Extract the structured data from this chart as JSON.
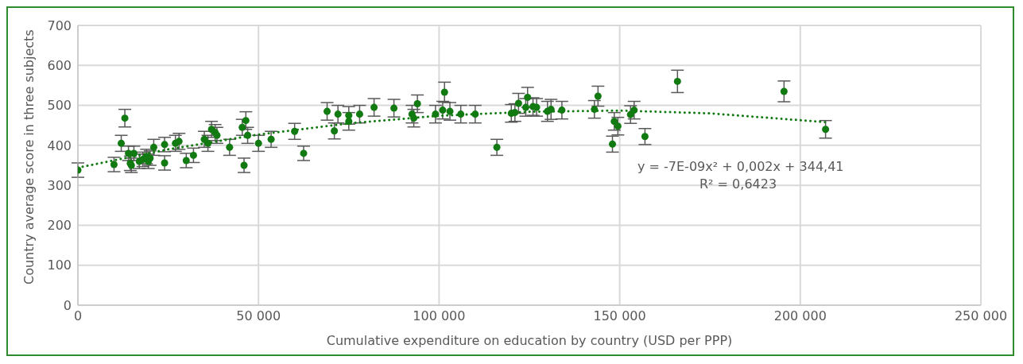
{
  "chart_data": {
    "type": "scatter",
    "xlabel": "Cumulative expenditure on education by country (USD per PPP)",
    "ylabel": "Country average score in three subjects",
    "x": [
      0,
      10000,
      12000,
      13000,
      14000,
      14500,
      14800,
      15500,
      17000,
      18000,
      19000,
      19500,
      20000,
      21000,
      24000,
      24000,
      27000,
      28000,
      30000,
      32000,
      35000,
      36000,
      37000,
      38000,
      38500,
      42000,
      45500,
      46000,
      46500,
      47000,
      50000,
      53500,
      60000,
      62500,
      69000,
      71000,
      72000,
      75000,
      75000,
      78000,
      82000,
      87500,
      92500,
      93000,
      94000,
      99000,
      101000,
      101500,
      103000,
      106000,
      110000,
      116000,
      120000,
      121000,
      122000,
      124000,
      124500,
      126000,
      127000,
      130000,
      131000,
      134000,
      143000,
      144000,
      148000,
      148500,
      149500,
      153000,
      154000,
      157000,
      166000,
      195500,
      207000
    ],
    "series": [
      {
        "color": "#117a11",
        "marker": "circle",
        "values": [
          338,
          352,
          405,
          468,
          380,
          355,
          350,
          380,
          360,
          365,
          372,
          360,
          368,
          395,
          402,
          356,
          405,
          410,
          362,
          375,
          415,
          405,
          440,
          432,
          425,
          395,
          445,
          350,
          462,
          425,
          405,
          415,
          435,
          380,
          485,
          436,
          478,
          475,
          460,
          478,
          495,
          493,
          478,
          468,
          504,
          478,
          488,
          533,
          485,
          478,
          478,
          395,
          480,
          482,
          505,
          495,
          520,
          497,
          495,
          485,
          490,
          488,
          490,
          523,
          403,
          460,
          448,
          477,
          488,
          422,
          560,
          535,
          440
        ],
        "errors": [
          18,
          18,
          20,
          22,
          18,
          18,
          18,
          18,
          18,
          18,
          18,
          18,
          18,
          20,
          18,
          18,
          20,
          20,
          18,
          18,
          20,
          20,
          20,
          20,
          20,
          20,
          20,
          18,
          22,
          20,
          20,
          20,
          20,
          18,
          22,
          20,
          22,
          22,
          22,
          22,
          22,
          22,
          22,
          22,
          22,
          22,
          22,
          25,
          22,
          22,
          22,
          20,
          22,
          22,
          25,
          22,
          25,
          22,
          22,
          25,
          25,
          22,
          22,
          25,
          20,
          22,
          22,
          22,
          22,
          20,
          28,
          26,
          22
        ]
      },
      {
        "type": "line",
        "color": "#117a11",
        "line_style": "dotted",
        "x": [
          0,
          25000,
          50000,
          75000,
          100000,
          125000,
          150000,
          175000,
          207000
        ],
        "values": [
          344,
          390,
          427,
          455,
          474,
          484,
          487,
          480,
          458
        ]
      }
    ],
    "xlim": [
      0,
      250000
    ],
    "xticks": [
      {
        "value": 0,
        "label": "0"
      },
      {
        "value": 50000,
        "label": "50 000"
      },
      {
        "value": 100000,
        "label": "100 000"
      },
      {
        "value": 150000,
        "label": "150 000"
      },
      {
        "value": 200000,
        "label": "200 000"
      },
      {
        "value": 250000,
        "label": "250 000"
      }
    ],
    "ylim": [
      0,
      700
    ],
    "yticks": [
      0,
      100,
      200,
      300,
      400,
      500,
      600,
      700
    ],
    "grid": true,
    "legend": false,
    "annotations": [
      "y = -7E-09x² + 0,002x + 344,41",
      "R² = 0,6423"
    ]
  }
}
